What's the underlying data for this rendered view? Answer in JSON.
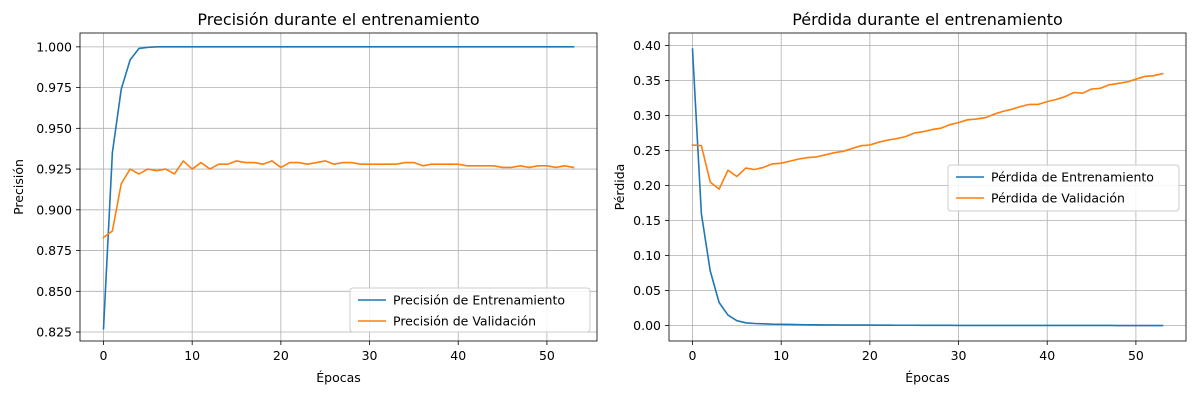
{
  "chart_data": [
    {
      "type": "line",
      "title": "Precisión durante el entrenamiento",
      "xlabel": "Épocas",
      "ylabel": "Precisión",
      "xlim": [
        -2.65,
        55.65
      ],
      "ylim": [
        0.8195,
        1.0085
      ],
      "xticks": [
        0,
        10,
        20,
        30,
        40,
        50
      ],
      "yticks": [
        0.825,
        0.85,
        0.875,
        0.9,
        0.925,
        0.95,
        0.975,
        1.0
      ],
      "ytick_format": "fixed3",
      "grid": true,
      "legend_placement": "lower-right",
      "series": [
        {
          "name": "Precisión de Entrenamiento",
          "color": "#1f77b4",
          "values": [
            0.827,
            0.935,
            0.974,
            0.992,
            0.999,
            0.9997,
            1.0,
            1.0,
            1.0,
            1.0,
            1.0,
            1.0,
            1.0,
            1.0,
            1.0,
            1.0,
            1.0,
            1.0,
            1.0,
            1.0,
            1.0,
            1.0,
            1.0,
            1.0,
            1.0,
            1.0,
            1.0,
            1.0,
            1.0,
            1.0,
            1.0,
            1.0,
            1.0,
            1.0,
            1.0,
            1.0,
            1.0,
            1.0,
            1.0,
            1.0,
            1.0,
            1.0,
            1.0,
            1.0,
            1.0,
            1.0,
            1.0,
            1.0,
            1.0,
            1.0,
            1.0,
            1.0,
            1.0,
            1.0
          ]
        },
        {
          "name": "Precisión de Validación",
          "color": "#ff7f0e",
          "values": [
            0.883,
            0.887,
            0.916,
            0.925,
            0.922,
            0.925,
            0.924,
            0.925,
            0.922,
            0.93,
            0.925,
            0.929,
            0.925,
            0.928,
            0.928,
            0.93,
            0.929,
            0.929,
            0.928,
            0.93,
            0.926,
            0.929,
            0.929,
            0.928,
            0.929,
            0.93,
            0.928,
            0.929,
            0.929,
            0.928,
            0.928,
            0.928,
            0.928,
            0.928,
            0.929,
            0.929,
            0.927,
            0.928,
            0.928,
            0.928,
            0.928,
            0.927,
            0.927,
            0.927,
            0.927,
            0.926,
            0.926,
            0.927,
            0.926,
            0.927,
            0.927,
            0.926,
            0.927,
            0.926
          ]
        }
      ]
    },
    {
      "type": "line",
      "title": "Pérdida durante el entrenamiento",
      "xlabel": "Épocas",
      "ylabel": "Pérdida",
      "xlim": [
        -2.65,
        55.65
      ],
      "ylim": [
        -0.022,
        0.418
      ],
      "xticks": [
        0,
        10,
        20,
        30,
        40,
        50
      ],
      "yticks": [
        0.0,
        0.05,
        0.1,
        0.15,
        0.2,
        0.25,
        0.3,
        0.35,
        0.4
      ],
      "ytick_format": "fixed2",
      "grid": true,
      "legend_placement": "center-right",
      "series": [
        {
          "name": "Pérdida de Entrenamiento",
          "color": "#1f77b4",
          "values": [
            0.395,
            0.16,
            0.078,
            0.033,
            0.015,
            0.007,
            0.004,
            0.003,
            0.0025,
            0.002,
            0.0018,
            0.0016,
            0.0014,
            0.0012,
            0.0011,
            0.001,
            0.0009,
            0.0008,
            0.0008,
            0.0007,
            0.0007,
            0.0006,
            0.0006,
            0.0005,
            0.0005,
            0.0005,
            0.0004,
            0.0004,
            0.0004,
            0.0004,
            0.0003,
            0.0003,
            0.0003,
            0.0003,
            0.0003,
            0.0003,
            0.0002,
            0.0002,
            0.0002,
            0.0002,
            0.0002,
            0.0002,
            0.0002,
            0.0002,
            0.0002,
            0.0002,
            0.0002,
            0.0002,
            0.0001,
            0.0001,
            0.0001,
            0.0001,
            0.0001,
            0.0001
          ]
        },
        {
          "name": "Pérdida de Validación",
          "color": "#ff7f0e",
          "values": [
            0.258,
            0.257,
            0.205,
            0.195,
            0.222,
            0.213,
            0.225,
            0.223,
            0.226,
            0.231,
            0.232,
            0.235,
            0.238,
            0.24,
            0.241,
            0.244,
            0.247,
            0.249,
            0.253,
            0.257,
            0.258,
            0.262,
            0.265,
            0.267,
            0.27,
            0.275,
            0.277,
            0.28,
            0.282,
            0.287,
            0.29,
            0.294,
            0.295,
            0.297,
            0.302,
            0.306,
            0.309,
            0.313,
            0.316,
            0.316,
            0.32,
            0.323,
            0.327,
            0.333,
            0.332,
            0.338,
            0.339,
            0.344,
            0.346,
            0.348,
            0.352,
            0.356,
            0.357,
            0.36
          ]
        }
      ]
    }
  ]
}
